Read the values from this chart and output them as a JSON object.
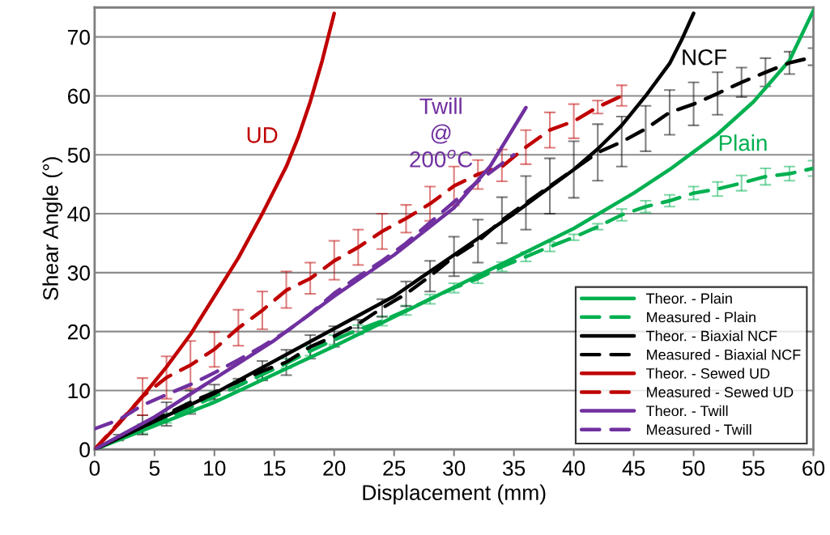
{
  "chart_data": {
    "type": "line",
    "xlabel": "Displacement (mm)",
    "ylabel": "Shear Angle (°)",
    "xlim": [
      0,
      60
    ],
    "xticks": [
      0,
      5,
      10,
      15,
      20,
      25,
      30,
      35,
      40,
      45,
      50,
      55,
      60
    ],
    "ylim": [
      0,
      75
    ],
    "yticks": [
      0,
      10,
      20,
      30,
      40,
      50,
      60,
      70
    ],
    "grid": "y",
    "legend": "bottom right",
    "annotations": [
      "Plain",
      "NCF",
      "UD",
      "Twill\n@\n200$^{o}$C"
    ],
    "series": [
      {
        "name": "Theor. - Plain",
        "color": "#00b050",
        "line_style": "solid",
        "x": [
          0,
          10,
          20,
          30,
          35,
          40,
          45,
          48,
          50,
          52,
          55,
          58,
          60
        ],
        "values": [
          0,
          8,
          17.5,
          27.5,
          32.5,
          37.5,
          43.5,
          47.5,
          50.5,
          53.5,
          59,
          66,
          74.5
        ]
      },
      {
        "name": "Measured - Plain",
        "color": "#00b050",
        "line_style": "dashed",
        "x": [
          0,
          2,
          4,
          6,
          8,
          10,
          12,
          14,
          16,
          18,
          20,
          22,
          24,
          26,
          28,
          30,
          32,
          34,
          36,
          38,
          40,
          42,
          44,
          46,
          48,
          50,
          52,
          54,
          56,
          58,
          60
        ],
        "values": [
          0,
          1.7,
          3.5,
          5.3,
          7.1,
          9,
          10.8,
          12.7,
          14.6,
          16.7,
          18.6,
          20.3,
          21.8,
          23.6,
          25.5,
          27.4,
          29,
          31,
          32.7,
          34.4,
          36,
          37.8,
          39.8,
          41.2,
          42.2,
          43.5,
          44.2,
          45.2,
          46.3,
          46.8,
          47.7
        ],
        "errors": [
          null,
          null,
          0.8,
          0.8,
          0.8,
          0.8,
          0.8,
          0.8,
          0.8,
          0.8,
          0.8,
          0.8,
          0.8,
          0.8,
          0.8,
          0.8,
          0.8,
          0.8,
          0.8,
          0.8,
          0.5,
          0.5,
          1,
          1,
          1,
          1.1,
          1.2,
          1.3,
          1.4,
          1.2,
          1.3
        ]
      },
      {
        "name": "Theor. - Biaxial NCF",
        "color": "#000000",
        "line_style": "solid",
        "x": [
          0,
          10,
          20,
          25,
          30,
          35,
          40,
          42,
          44,
          46,
          48,
          49,
          50
        ],
        "values": [
          0,
          9.5,
          20.5,
          26,
          33,
          40,
          47.5,
          51,
          55,
          60,
          65.5,
          69.5,
          74
        ]
      },
      {
        "name": "Measured - Biaxial NCF",
        "color": "#000000",
        "line_style": "dashed",
        "x": [
          0,
          2,
          4,
          6,
          8,
          10,
          12,
          14,
          16,
          18,
          20,
          22,
          24,
          26,
          28,
          30,
          32,
          34,
          36,
          38,
          40,
          42,
          44,
          46,
          48,
          50,
          52,
          54,
          56,
          58,
          60
        ],
        "values": [
          0,
          2,
          4,
          6,
          8,
          9.7,
          11.5,
          13.3,
          14.8,
          17.4,
          19.2,
          21.3,
          24,
          26.4,
          29.4,
          32.7,
          35.3,
          38.9,
          41.8,
          44.7,
          47.5,
          50.4,
          52.2,
          54.4,
          57.2,
          58.6,
          60.4,
          62.3,
          64,
          65.6,
          66.6
        ],
        "errors": [
          null,
          [
            1.5,
            2.5
          ],
          [
            2.5,
            5.8
          ],
          [
            4,
            8
          ],
          [
            6,
            10
          ],
          [
            8.5,
            11
          ],
          [
            11,
            12
          ],
          [
            11.7,
            15
          ],
          [
            12.6,
            16.9
          ],
          [
            15.4,
            19.4
          ],
          [
            17.4,
            20.9
          ],
          [
            20.6,
            22
          ],
          [
            22.5,
            25.5
          ],
          [
            24.3,
            28.5
          ],
          [
            26.8,
            32
          ],
          [
            29.4,
            36.1
          ],
          [
            31.7,
            39
          ],
          [
            35,
            42.8
          ],
          [
            37.3,
            46.4
          ],
          [
            40,
            49.4
          ],
          [
            42.7,
            52.3
          ],
          [
            45.6,
            55.2
          ],
          [
            48,
            56.5
          ],
          [
            50.6,
            58.3
          ],
          [
            53.4,
            61
          ],
          [
            55,
            62.3
          ],
          [
            56.8,
            64
          ],
          [
            59.8,
            64.8
          ],
          [
            61.6,
            66.4
          ],
          [
            63.7,
            67.5
          ],
          [
            65.2,
            68.1
          ]
        ]
      },
      {
        "name": "Theor. - Sewed UD",
        "color": "#c00000",
        "line_style": "solid",
        "x": [
          0,
          2,
          4,
          6,
          8,
          10,
          12,
          14,
          16,
          17,
          18,
          19,
          20
        ],
        "values": [
          0,
          4.3,
          9,
          14,
          19.5,
          26,
          32.5,
          40,
          48,
          53,
          59,
          66,
          74
        ]
      },
      {
        "name": "Measured - Sewed UD",
        "color": "#c00000",
        "line_style": "dashed",
        "x": [
          0,
          2,
          4,
          6,
          8,
          10,
          12,
          14,
          16,
          18,
          20,
          22,
          24,
          26,
          28,
          30,
          32,
          34,
          36,
          38,
          40,
          42,
          44
        ],
        "values": [
          0,
          4.5,
          9,
          12.2,
          14.3,
          17,
          20.6,
          23.6,
          27,
          29,
          32,
          34.3,
          37,
          39.2,
          41.7,
          44.7,
          46.7,
          48,
          51.3,
          54.2,
          55.7,
          58.1,
          60
        ],
        "errors": [
          null,
          null,
          [
            5.8,
            12.1
          ],
          [
            8.6,
            15.8
          ],
          [
            10.3,
            18.4
          ],
          [
            14,
            19.9
          ],
          [
            17.6,
            23.7
          ],
          [
            20.4,
            26.8
          ],
          [
            24,
            30.2
          ],
          [
            26.4,
            31.7
          ],
          [
            28.8,
            35.4
          ],
          [
            31.3,
            37.3
          ],
          [
            34,
            40
          ],
          [
            36.8,
            41.5
          ],
          [
            38.8,
            44.6
          ],
          [
            41.4,
            48
          ],
          [
            44.2,
            49.1
          ],
          [
            45.5,
            50.9
          ],
          [
            48.4,
            54.2
          ],
          [
            51.2,
            57.2
          ],
          [
            52.8,
            58.6
          ],
          [
            57,
            59.2
          ],
          [
            58.3,
            61.8
          ]
        ]
      },
      {
        "name": "Theor. - Twill",
        "color": "#7030a0",
        "line_style": "solid",
        "x": [
          0,
          5,
          10,
          15,
          20,
          25,
          30,
          33,
          36
        ],
        "values": [
          0,
          5.5,
          12,
          18.5,
          26,
          33,
          41,
          48,
          58
        ]
      },
      {
        "name": "Measured - Twill",
        "color": "#7030a0",
        "line_style": "dashed",
        "x": [
          0,
          2,
          4,
          6,
          8,
          10,
          12,
          14,
          16,
          18,
          20,
          22,
          24,
          26,
          28,
          30,
          32,
          34,
          35
        ],
        "values": [
          3.5,
          5,
          7.5,
          9.3,
          11,
          13,
          15.2,
          17.5,
          20,
          23,
          26.5,
          29.3,
          32,
          35,
          38.5,
          42,
          45.5,
          48.5,
          50
        ]
      }
    ]
  }
}
